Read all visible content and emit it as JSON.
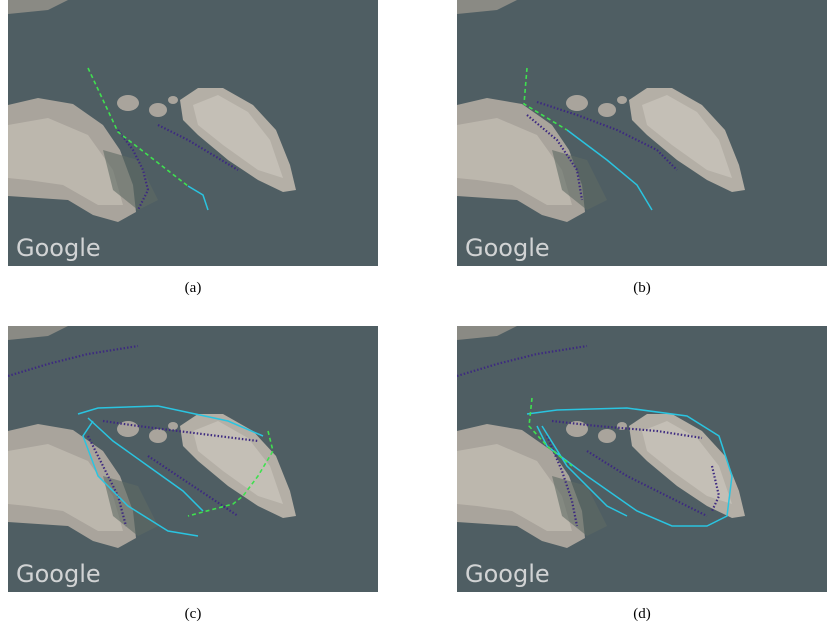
{
  "panels": [
    {
      "watermark": "Google",
      "caption": "(a)"
    },
    {
      "watermark": "Google",
      "caption": "(b)"
    },
    {
      "watermark": "Google",
      "caption": "(c)"
    },
    {
      "watermark": "Google",
      "caption": "(d)"
    }
  ]
}
